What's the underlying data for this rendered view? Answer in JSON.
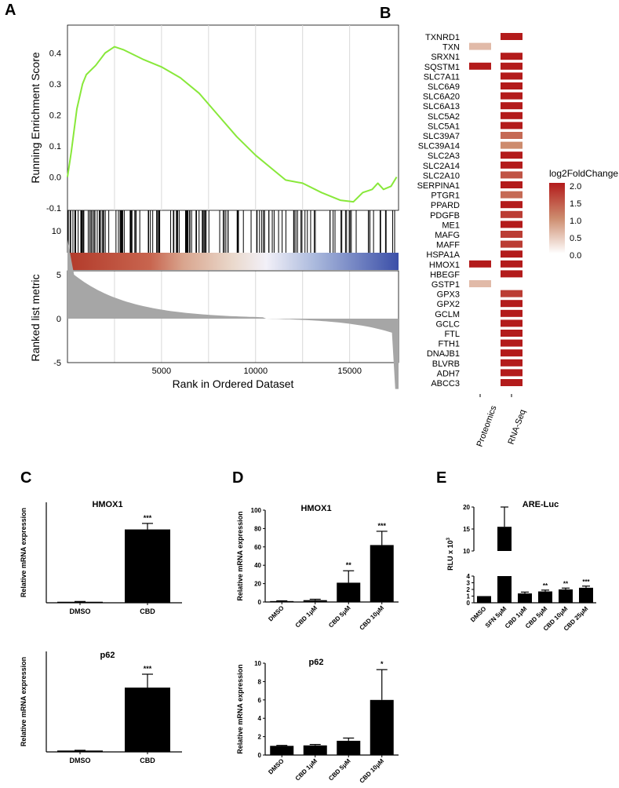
{
  "panel_letters": {
    "a": "A",
    "b": "B",
    "c": "C",
    "d": "D",
    "e": "E"
  },
  "chart_data": [
    {
      "id": "A",
      "type": "line",
      "ylabel": "Running Enrichment Score",
      "xlabel": "Rank in Ordered Dataset",
      "ylim": [
        -0.1,
        0.4
      ],
      "yticks": [
        "0.4",
        "0.3",
        "0.2",
        "0.1",
        "0.0",
        "-0.1"
      ],
      "xticks": [
        "5000",
        "10000",
        "15000"
      ],
      "xlim": [
        0,
        17600
      ],
      "series": [
        {
          "color": "#88e83a",
          "x": [
            0,
            200,
            500,
            800,
            1000,
            1500,
            2000,
            2500,
            3000,
            3500,
            4000,
            5000,
            6000,
            7000,
            8000,
            9000,
            10000,
            11000,
            11600,
            12500,
            13500,
            14500,
            15200,
            15700,
            16200,
            16500,
            16800,
            17200,
            17500
          ],
          "y": [
            0.0,
            0.08,
            0.22,
            0.3,
            0.33,
            0.36,
            0.4,
            0.42,
            0.41,
            0.395,
            0.38,
            0.355,
            0.32,
            0.27,
            0.2,
            0.13,
            0.07,
            0.02,
            -0.01,
            -0.02,
            -0.05,
            -0.075,
            -0.08,
            -0.05,
            -0.04,
            -0.02,
            -0.04,
            -0.03,
            0.0
          ]
        }
      ],
      "ranked_metric": {
        "ylabel": "Ranked list metric",
        "yticks": [
          "10",
          "5",
          "0",
          "-5"
        ],
        "ylim": [
          -8,
          10
        ]
      }
    },
    {
      "id": "B",
      "type": "heatmap",
      "genes": [
        "TXNRD1",
        "TXN",
        "SRXN1",
        "SQSTM1",
        "SLC7A11",
        "SLC6A9",
        "SLC6A20",
        "SLC6A13",
        "SLC5A2",
        "SLC5A1",
        "SLC39A7",
        "SLC39A14",
        "SLC2A3",
        "SLC2A14",
        "SLC2A10",
        "SERPINA1",
        "PTGR1",
        "PPARD",
        "PDGFB",
        "ME1",
        "MAFG",
        "MAFF",
        "HSPA1A",
        "HMOX1",
        "HBEGF",
        "GSTP1",
        "GPX3",
        "GPX2",
        "GCLM",
        "GCLC",
        "FTL",
        "FTH1",
        "DNAJB1",
        "BLVRB",
        "ADH7",
        "ABCC3"
      ],
      "columns": [
        "Proteomics",
        "RNA-Seq"
      ],
      "proteomics": [
        null,
        0.6,
        null,
        2.0,
        null,
        null,
        null,
        null,
        null,
        null,
        null,
        null,
        null,
        null,
        null,
        null,
        null,
        null,
        null,
        null,
        null,
        null,
        null,
        2.0,
        null,
        0.6,
        null,
        null,
        null,
        null,
        null,
        null,
        null,
        null,
        null,
        null
      ],
      "rnaseq": [
        2.0,
        null,
        2.0,
        2.0,
        2.0,
        2.0,
        2.0,
        2.0,
        2.0,
        2.0,
        1.3,
        1.0,
        2.0,
        2.0,
        1.5,
        2.0,
        1.3,
        2.0,
        1.7,
        2.0,
        1.7,
        1.7,
        2.0,
        2.0,
        2.0,
        null,
        1.7,
        2.0,
        2.0,
        2.0,
        2.0,
        2.0,
        2.0,
        2.0,
        2.0,
        2.0
      ],
      "legend_title": "log2FoldChange",
      "legend_ticks": [
        "2.0",
        "1.5",
        "1.0",
        "0.5",
        "0.0"
      ],
      "colors": {
        "high": "#b31b1b",
        "low": "#ffffff"
      }
    },
    {
      "id": "C1",
      "type": "bar",
      "title": "HMOX1",
      "ylabel": "Relative mRNA expression",
      "categories": [
        "DMSO",
        "CBD"
      ],
      "values": [
        1,
        73
      ],
      "errors": [
        0.3,
        6
      ],
      "sig": [
        "",
        "***"
      ],
      "ylim": [
        0,
        100
      ]
    },
    {
      "id": "C2",
      "type": "bar",
      "title": "p62",
      "ylabel": "Relative mRNA expression",
      "categories": [
        "DMSO",
        "CBD"
      ],
      "values": [
        1,
        48
      ],
      "errors": [
        0.2,
        10
      ],
      "sig": [
        "",
        "***"
      ],
      "ylim": [
        0,
        75
      ]
    },
    {
      "id": "D1",
      "type": "bar",
      "title": "HMOX1",
      "ylabel": "Relative mRNA expression",
      "categories": [
        "DMSO",
        "CBD 1μM",
        "CBD 5μM",
        "CBD 10μM"
      ],
      "values": [
        1,
        2,
        21,
        62
      ],
      "errors": [
        0.3,
        1,
        13,
        15
      ],
      "sig": [
        "",
        "",
        "**",
        "***"
      ],
      "ylim": [
        0,
        100
      ],
      "yticks": [
        "0",
        "20",
        "40",
        "60",
        "80",
        "100"
      ]
    },
    {
      "id": "D2",
      "type": "bar",
      "title": "p62",
      "ylabel": "Relative mRNA expression",
      "categories": [
        "DMSO",
        "CBD 1μM",
        "CBD 5μM",
        "CBD 10μM"
      ],
      "values": [
        1,
        1.05,
        1.55,
        6
      ],
      "errors": [
        0.05,
        0.1,
        0.3,
        3.3
      ],
      "sig": [
        "",
        "",
        "",
        "*"
      ],
      "ylim": [
        0,
        10
      ],
      "yticks": [
        "0",
        "2",
        "4",
        "6",
        "8",
        "10"
      ]
    },
    {
      "id": "E",
      "type": "bar",
      "title": "ARE-Luc",
      "ylabel": "RLU x 10",
      "ylabel_sup": "3",
      "categories": [
        "DMSO",
        "SFN 5μM",
        "CBD 1μM",
        "CBD 5μM",
        "CBD 10μM",
        "CBD 25μM"
      ],
      "values": [
        1,
        15.5,
        1.4,
        1.7,
        2.0,
        2.25
      ],
      "errors": [
        0,
        4.5,
        0.2,
        0.2,
        0.2,
        0.25
      ],
      "sig": [
        "",
        "",
        "",
        "**",
        "**",
        "***"
      ],
      "yticks_lower": [
        "0",
        "1",
        "2",
        "3",
        "4"
      ],
      "yticks_upper": [
        "10",
        "15",
        "20"
      ],
      "ylim_lower": [
        0,
        4
      ],
      "ylim_upper": [
        10,
        20
      ]
    }
  ]
}
